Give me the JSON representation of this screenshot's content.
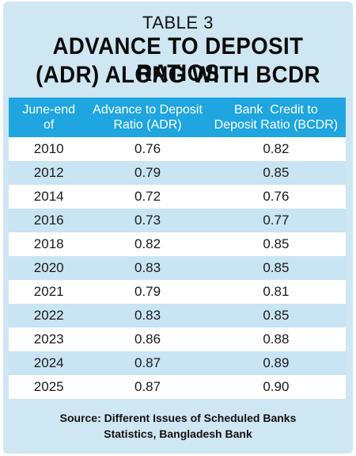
{
  "table_label": "TABLE 3",
  "title_line1": "ADVANCE TO DEPOSIT RATIOS",
  "title_line2": "(ADR) ALONG WITH BCDR",
  "columns": [
    {
      "line1": "June-end",
      "line2": "of"
    },
    {
      "line1": "Advance to Deposit",
      "line2": "Ratio (ADR)"
    },
    {
      "line1": "Bank  Credit to",
      "line2": "Deposit Ratio (BCDR)"
    }
  ],
  "rows": [
    {
      "year": "2010",
      "adr": "0.76",
      "bcdr": "0.82"
    },
    {
      "year": "2012",
      "adr": "0.79",
      "bcdr": "0.85"
    },
    {
      "year": "2014",
      "adr": "0.72",
      "bcdr": "0.76"
    },
    {
      "year": "2016",
      "adr": "0.73",
      "bcdr": "0.77"
    },
    {
      "year": "2018",
      "adr": "0.82",
      "bcdr": "0.85"
    },
    {
      "year": "2020",
      "adr": "0.83",
      "bcdr": "0.85"
    },
    {
      "year": "2021",
      "adr": "0.79",
      "bcdr": "0.81"
    },
    {
      "year": "2022",
      "adr": "0.83",
      "bcdr": "0.85"
    },
    {
      "year": "2023",
      "adr": "0.86",
      "bcdr": "0.88"
    },
    {
      "year": "2024",
      "adr": "0.87",
      "bcdr": "0.89"
    },
    {
      "year": "2025",
      "adr": "0.87",
      "bcdr": "0.90"
    }
  ],
  "source_line1": "Source: Different Issues of Scheduled Banks",
  "source_line2": "Statistics, Bangladesh Bank",
  "colors": {
    "card_background": "#cfe6f3",
    "header_background": "#1fa5df",
    "header_text": "#ffffff",
    "row_alt": "#c9e4f3",
    "row_plain": "#ffffff"
  }
}
